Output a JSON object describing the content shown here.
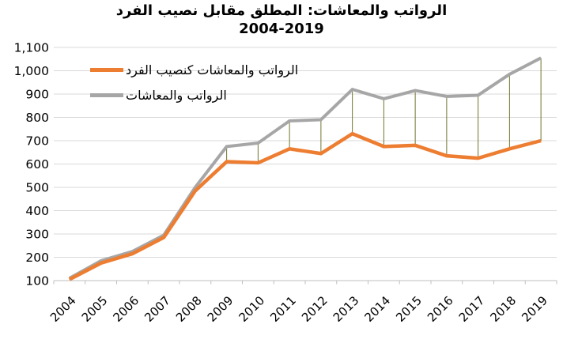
{
  "title": {
    "line1": "الرواتب والمعاشات: المطلق مقابل نصيب الفرد",
    "line2": "2004-2019"
  },
  "legend": {
    "position": "inside-top-left",
    "items": [
      {
        "label": "الرواتب والمعاشات كنصيب الفرد",
        "color": "#ED7D31"
      },
      {
        "label": "الرواتب والمعاشات",
        "color": "#A6A6A6"
      }
    ]
  },
  "chart_data": {
    "type": "line",
    "title": "الرواتب والمعاشات: المطلق مقابل نصيب الفرد",
    "subtitle": "2004-2019",
    "categories": [
      "2004",
      "2005",
      "2006",
      "2007",
      "2008",
      "2009",
      "2010",
      "2011",
      "2012",
      "2013",
      "2014",
      "2015",
      "2016",
      "2017",
      "2018",
      "2019"
    ],
    "series": [
      {
        "name": "الرواتب والمعاشات كنصيب الفرد",
        "color": "#ED7D31",
        "stroke_width": 4.5,
        "values": [
          105,
          175,
          215,
          285,
          485,
          610,
          605,
          665,
          645,
          730,
          675,
          680,
          635,
          625,
          665,
          700
        ]
      },
      {
        "name": "الرواتب والمعاشات",
        "color": "#A6A6A6",
        "stroke_width": 4,
        "values": [
          110,
          185,
          225,
          295,
          500,
          675,
          690,
          785,
          790,
          920,
          880,
          915,
          890,
          895,
          985,
          1055
        ]
      }
    ],
    "y_axis": {
      "range": [
        100,
        1100
      ],
      "step": 100,
      "tick_labels": [
        "100",
        "200",
        "300",
        "400",
        "500",
        "600",
        "700",
        "800",
        "900",
        "1,000",
        "1,100"
      ]
    },
    "x_axis": {
      "label_rotation_deg": -45
    },
    "grid": true,
    "colors": {
      "grid": "#D9D9D9",
      "axis": "#BFBFBF",
      "drop_lines": "#73732F",
      "text": "#000000",
      "background": "#FFFFFF"
    },
    "drop_lines": true,
    "legend_position": "inside-top-left"
  }
}
